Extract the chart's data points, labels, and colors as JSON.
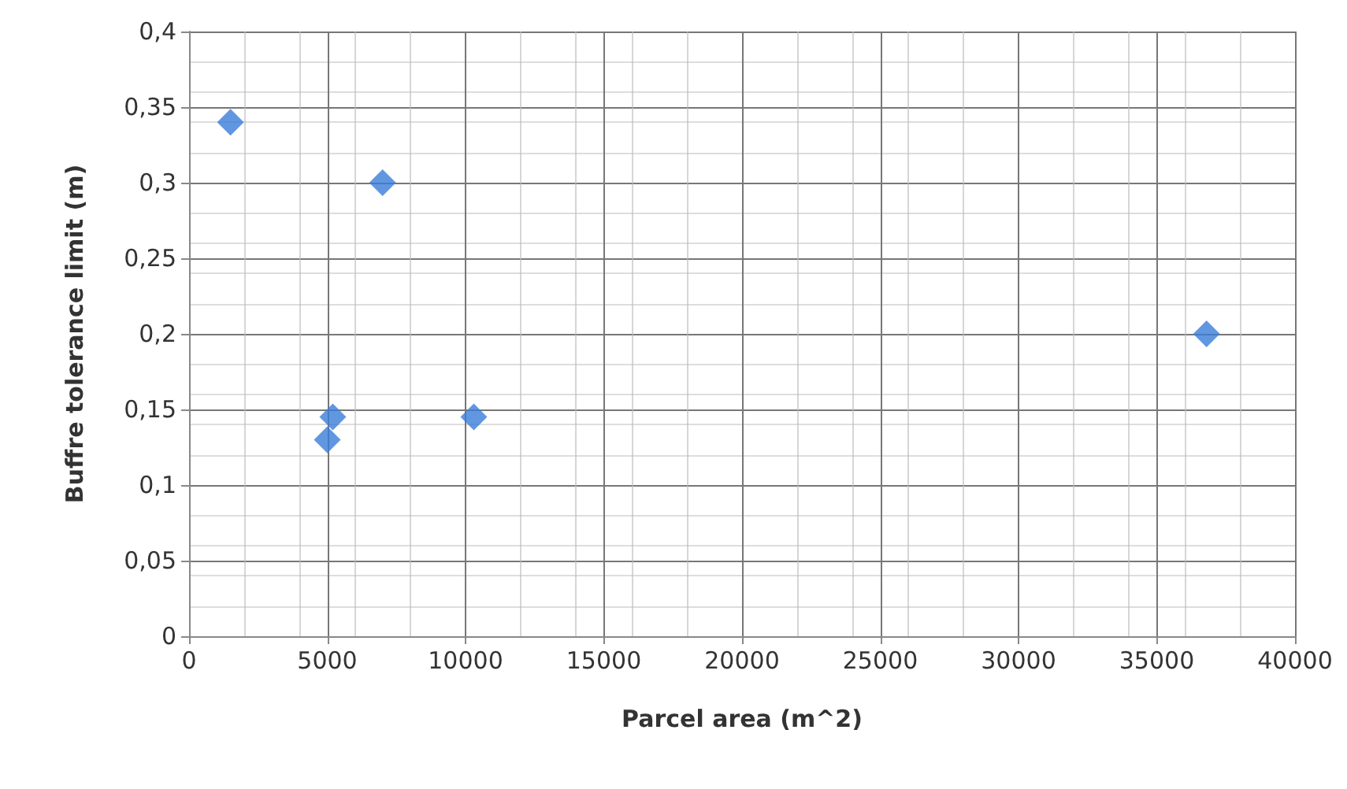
{
  "chart_data": {
    "type": "scatter",
    "xlabel": "Parcel area (m^2)",
    "ylabel": "Buffre tolerance limit (m)",
    "x": [
      1500,
      7000,
      5200,
      5000,
      10300,
      36800
    ],
    "series": [
      {
        "color": "#3a7dd8",
        "values": [
          0.34,
          0.3,
          0.145,
          0.13,
          0.145,
          0.2
        ]
      }
    ],
    "xlim": [
      0,
      40000
    ],
    "xticks": [
      0,
      5000,
      10000,
      15000,
      20000,
      25000,
      30000,
      35000,
      40000
    ],
    "ylim": [
      0,
      0.4
    ],
    "yticks": [
      0,
      {
        "value": 0.05,
        "label": "0,05"
      },
      {
        "value": 0.1,
        "label": "0,1"
      },
      {
        "value": 0.15,
        "label": "0,15"
      },
      {
        "value": 0.2,
        "label": "0,2"
      },
      {
        "value": 0.25,
        "label": "0,25"
      },
      {
        "value": 0.3,
        "label": "0,3"
      },
      {
        "value": 0.35,
        "label": "0,35"
      },
      {
        "value": 0.4,
        "label": "0,4"
      }
    ],
    "grid": true,
    "marker": "diamond"
  }
}
